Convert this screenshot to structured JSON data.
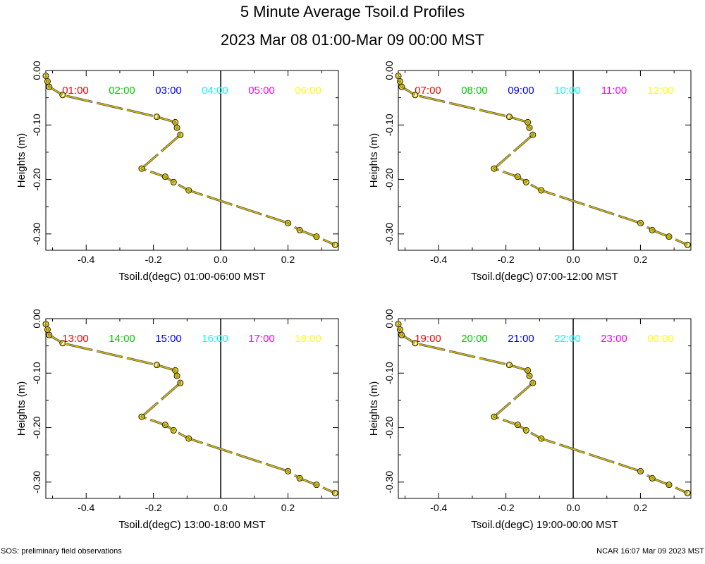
{
  "title": "5 Minute Average Tsoil.d Profiles",
  "subtitle": "2023 Mar 08 01:00-Mar 09 00:00 MST",
  "footer_left": "SOS: preliminary field observations",
  "footer_right": "NCAR 16:07 Mar 09 2023 MST",
  "colors": {
    "curve": "#d8bd00",
    "outline": "#000000",
    "zero_line": "#000000"
  },
  "time_colors": [
    "#ff0000",
    "#00cc00",
    "#0000ff",
    "#00ffff",
    "#ff00ff",
    "#ffff00"
  ],
  "chart_data": [
    {
      "type": "line",
      "xlabel": "Tsoil.d(degC) 01:00-06:00 MST",
      "ylabel": "Heights (m)",
      "xlim": [
        -0.52,
        0.35
      ],
      "ylim": [
        -0.33,
        0.0
      ],
      "xticks": [
        -0.4,
        -0.2,
        0.0,
        0.2
      ],
      "xtick_labels": [
        "-0.4",
        "-0.2",
        "0.0",
        "0.2"
      ],
      "yticks": [
        0.0,
        -0.1,
        -0.2,
        -0.3
      ],
      "ytick_labels": [
        "0.00",
        "-0.10",
        "-0.20",
        "-0.30"
      ],
      "legend": [
        "01:00",
        "02:00",
        "03:00",
        "04:00",
        "05:00",
        "06:00"
      ],
      "series": [
        {
          "x": [
            -0.52,
            -0.515,
            -0.51,
            -0.47,
            -0.19,
            -0.135,
            -0.13,
            -0.12,
            -0.235,
            -0.165,
            -0.14,
            -0.095,
            0.2,
            0.235,
            0.285,
            0.34
          ],
          "y": [
            -0.01,
            -0.02,
            -0.03,
            -0.045,
            -0.085,
            -0.095,
            -0.105,
            -0.118,
            -0.18,
            -0.195,
            -0.205,
            -0.22,
            -0.28,
            -0.293,
            -0.305,
            -0.32
          ]
        }
      ]
    },
    {
      "type": "line",
      "xlabel": "Tsoil.d(degC) 07:00-12:00 MST",
      "ylabel": "Heights (m)",
      "xlim": [
        -0.52,
        0.35
      ],
      "ylim": [
        -0.33,
        0.0
      ],
      "xticks": [
        -0.4,
        -0.2,
        0.0,
        0.2
      ],
      "xtick_labels": [
        "-0.4",
        "-0.2",
        "0.0",
        "0.2"
      ],
      "yticks": [
        0.0,
        -0.1,
        -0.2,
        -0.3
      ],
      "ytick_labels": [
        "0.00",
        "-0.10",
        "-0.20",
        "-0.30"
      ],
      "legend": [
        "07:00",
        "08:00",
        "09:00",
        "10:00",
        "11:00",
        "12:00"
      ],
      "series": [
        {
          "x": [
            -0.52,
            -0.515,
            -0.51,
            -0.47,
            -0.19,
            -0.135,
            -0.13,
            -0.12,
            -0.235,
            -0.165,
            -0.14,
            -0.095,
            0.2,
            0.235,
            0.285,
            0.34
          ],
          "y": [
            -0.01,
            -0.02,
            -0.03,
            -0.045,
            -0.085,
            -0.095,
            -0.105,
            -0.118,
            -0.18,
            -0.195,
            -0.205,
            -0.22,
            -0.28,
            -0.293,
            -0.305,
            -0.32
          ]
        }
      ]
    },
    {
      "type": "line",
      "xlabel": "Tsoil.d(degC) 13:00-18:00 MST",
      "ylabel": "Heights (m)",
      "xlim": [
        -0.52,
        0.35
      ],
      "ylim": [
        -0.33,
        0.0
      ],
      "xticks": [
        -0.4,
        -0.2,
        0.0,
        0.2
      ],
      "xtick_labels": [
        "-0.4",
        "-0.2",
        "0.0",
        "0.2"
      ],
      "yticks": [
        0.0,
        -0.1,
        -0.2,
        -0.3
      ],
      "ytick_labels": [
        "0.00",
        "-0.10",
        "-0.20",
        "-0.30"
      ],
      "legend": [
        "13:00",
        "14:00",
        "15:00",
        "16:00",
        "17:00",
        "18:00"
      ],
      "series": [
        {
          "x": [
            -0.52,
            -0.515,
            -0.51,
            -0.47,
            -0.19,
            -0.135,
            -0.13,
            -0.12,
            -0.235,
            -0.165,
            -0.14,
            -0.095,
            0.2,
            0.235,
            0.285,
            0.34
          ],
          "y": [
            -0.01,
            -0.02,
            -0.03,
            -0.045,
            -0.085,
            -0.095,
            -0.105,
            -0.118,
            -0.18,
            -0.195,
            -0.205,
            -0.22,
            -0.28,
            -0.293,
            -0.305,
            -0.32
          ]
        }
      ]
    },
    {
      "type": "line",
      "xlabel": "Tsoil.d(degC) 19:00-00:00 MST",
      "ylabel": "Heights (m)",
      "xlim": [
        -0.52,
        0.35
      ],
      "ylim": [
        -0.33,
        0.0
      ],
      "xticks": [
        -0.4,
        -0.2,
        0.0,
        0.2
      ],
      "xtick_labels": [
        "-0.4",
        "-0.2",
        "0.0",
        "0.2"
      ],
      "yticks": [
        0.0,
        -0.1,
        -0.2,
        -0.3
      ],
      "ytick_labels": [
        "0.00",
        "-0.10",
        "-0.20",
        "-0.30"
      ],
      "legend": [
        "19:00",
        "20:00",
        "21:00",
        "22:00",
        "23:00",
        "00:00"
      ],
      "series": [
        {
          "x": [
            -0.52,
            -0.515,
            -0.51,
            -0.47,
            -0.19,
            -0.135,
            -0.13,
            -0.12,
            -0.235,
            -0.165,
            -0.14,
            -0.095,
            0.2,
            0.235,
            0.285,
            0.34
          ],
          "y": [
            -0.01,
            -0.02,
            -0.03,
            -0.045,
            -0.085,
            -0.095,
            -0.105,
            -0.118,
            -0.18,
            -0.195,
            -0.205,
            -0.22,
            -0.28,
            -0.293,
            -0.305,
            -0.32
          ]
        }
      ]
    }
  ]
}
